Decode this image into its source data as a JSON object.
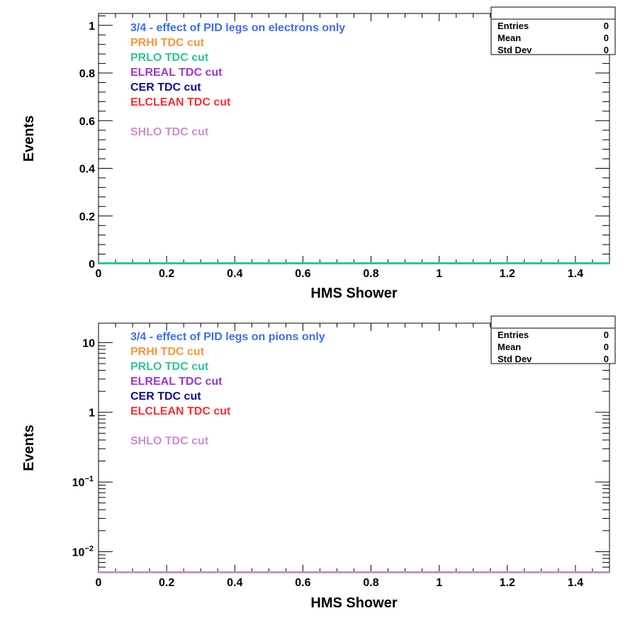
{
  "chart_data": [
    {
      "type": "line",
      "xlabel": "HMS Shower",
      "ylabel": "Events",
      "xlim": [
        0,
        1.5
      ],
      "ylim": [
        0,
        1.05
      ],
      "yscale": "linear",
      "x_ticks": [
        {
          "v": 0,
          "label": "0"
        },
        {
          "v": 0.2,
          "label": "0.2"
        },
        {
          "v": 0.4,
          "label": "0.4"
        },
        {
          "v": 0.6,
          "label": "0.6"
        },
        {
          "v": 0.8,
          "label": "0.8"
        },
        {
          "v": 1.0,
          "label": "1"
        },
        {
          "v": 1.2,
          "label": "1.2"
        },
        {
          "v": 1.4,
          "label": "1.4"
        }
      ],
      "y_ticks": [
        {
          "v": 0,
          "label": "0"
        },
        {
          "v": 0.2,
          "label": "0.2"
        },
        {
          "v": 0.4,
          "label": "0.4"
        },
        {
          "v": 0.6,
          "label": "0.6"
        },
        {
          "v": 0.8,
          "label": "0.8"
        },
        {
          "v": 1.0,
          "label": "1"
        }
      ],
      "legend": [
        {
          "text": "3/4 - effect of PID legs on electrons only",
          "color": "#3d6ee8"
        },
        {
          "text": "PRHI TDC cut",
          "color": "#f5963c"
        },
        {
          "text": "PRLO TDC cut",
          "color": "#2fc495"
        },
        {
          "text": "ELREAL TDC cut",
          "color": "#9a38c9"
        },
        {
          "text": "CER TDC cut",
          "color": "#0f0e8c"
        },
        {
          "text": "ELCLEAN TDC cut",
          "color": "#f23030"
        },
        {
          "text": "",
          "color": "#ffffff"
        },
        {
          "text": "SHLO TDC cut",
          "color": "#cc8fcc"
        }
      ],
      "series": [
        {
          "values": [
            [
              0,
              0
            ],
            [
              1.5,
              0
            ]
          ],
          "color": "#2fc495"
        }
      ],
      "stats": {
        "title": "",
        "rows": [
          {
            "label": "Entries",
            "value": "0"
          },
          {
            "label": "Mean",
            "value": "0"
          },
          {
            "label": "Std Dev",
            "value": "0"
          }
        ]
      }
    },
    {
      "type": "line",
      "xlabel": "HMS Shower",
      "ylabel": "Events",
      "xlim": [
        0,
        1.5
      ],
      "ylim": [
        0.005,
        19
      ],
      "yscale": "log",
      "x_ticks": [
        {
          "v": 0,
          "label": "0"
        },
        {
          "v": 0.2,
          "label": "0.2"
        },
        {
          "v": 0.4,
          "label": "0.4"
        },
        {
          "v": 0.6,
          "label": "0.6"
        },
        {
          "v": 0.8,
          "label": "0.8"
        },
        {
          "v": 1.0,
          "label": "1"
        },
        {
          "v": 1.2,
          "label": "1.2"
        },
        {
          "v": 1.4,
          "label": "1.4"
        }
      ],
      "y_ticks": [
        {
          "v": 10,
          "label": "10"
        },
        {
          "v": 1,
          "label": "1"
        },
        {
          "v": 0.1,
          "label": "10",
          "sup": "−1"
        },
        {
          "v": 0.01,
          "label": "10",
          "sup": "−2"
        }
      ],
      "legend": [
        {
          "text": "3/4 - effect of PID legs on pions only",
          "color": "#3d6ee8"
        },
        {
          "text": "PRHI TDC cut",
          "color": "#f5963c"
        },
        {
          "text": "PRLO TDC cut",
          "color": "#2fc495"
        },
        {
          "text": "ELREAL TDC cut",
          "color": "#9a38c9"
        },
        {
          "text": "CER TDC cut",
          "color": "#0f0e8c"
        },
        {
          "text": "ELCLEAN TDC cut",
          "color": "#f23030"
        },
        {
          "text": "",
          "color": "#ffffff"
        },
        {
          "text": "SHLO TDC cut",
          "color": "#cc8fcc"
        }
      ],
      "series": [
        {
          "values": [
            [
              0,
              0.005
            ],
            [
              1.5,
              0.005
            ]
          ],
          "color": "#cc8fcc"
        }
      ],
      "stats": {
        "title": "",
        "rows": [
          {
            "label": "Entries",
            "value": "0"
          },
          {
            "label": "Mean",
            "value": "0"
          },
          {
            "label": "Std Dev",
            "value": "0"
          }
        ]
      }
    }
  ]
}
